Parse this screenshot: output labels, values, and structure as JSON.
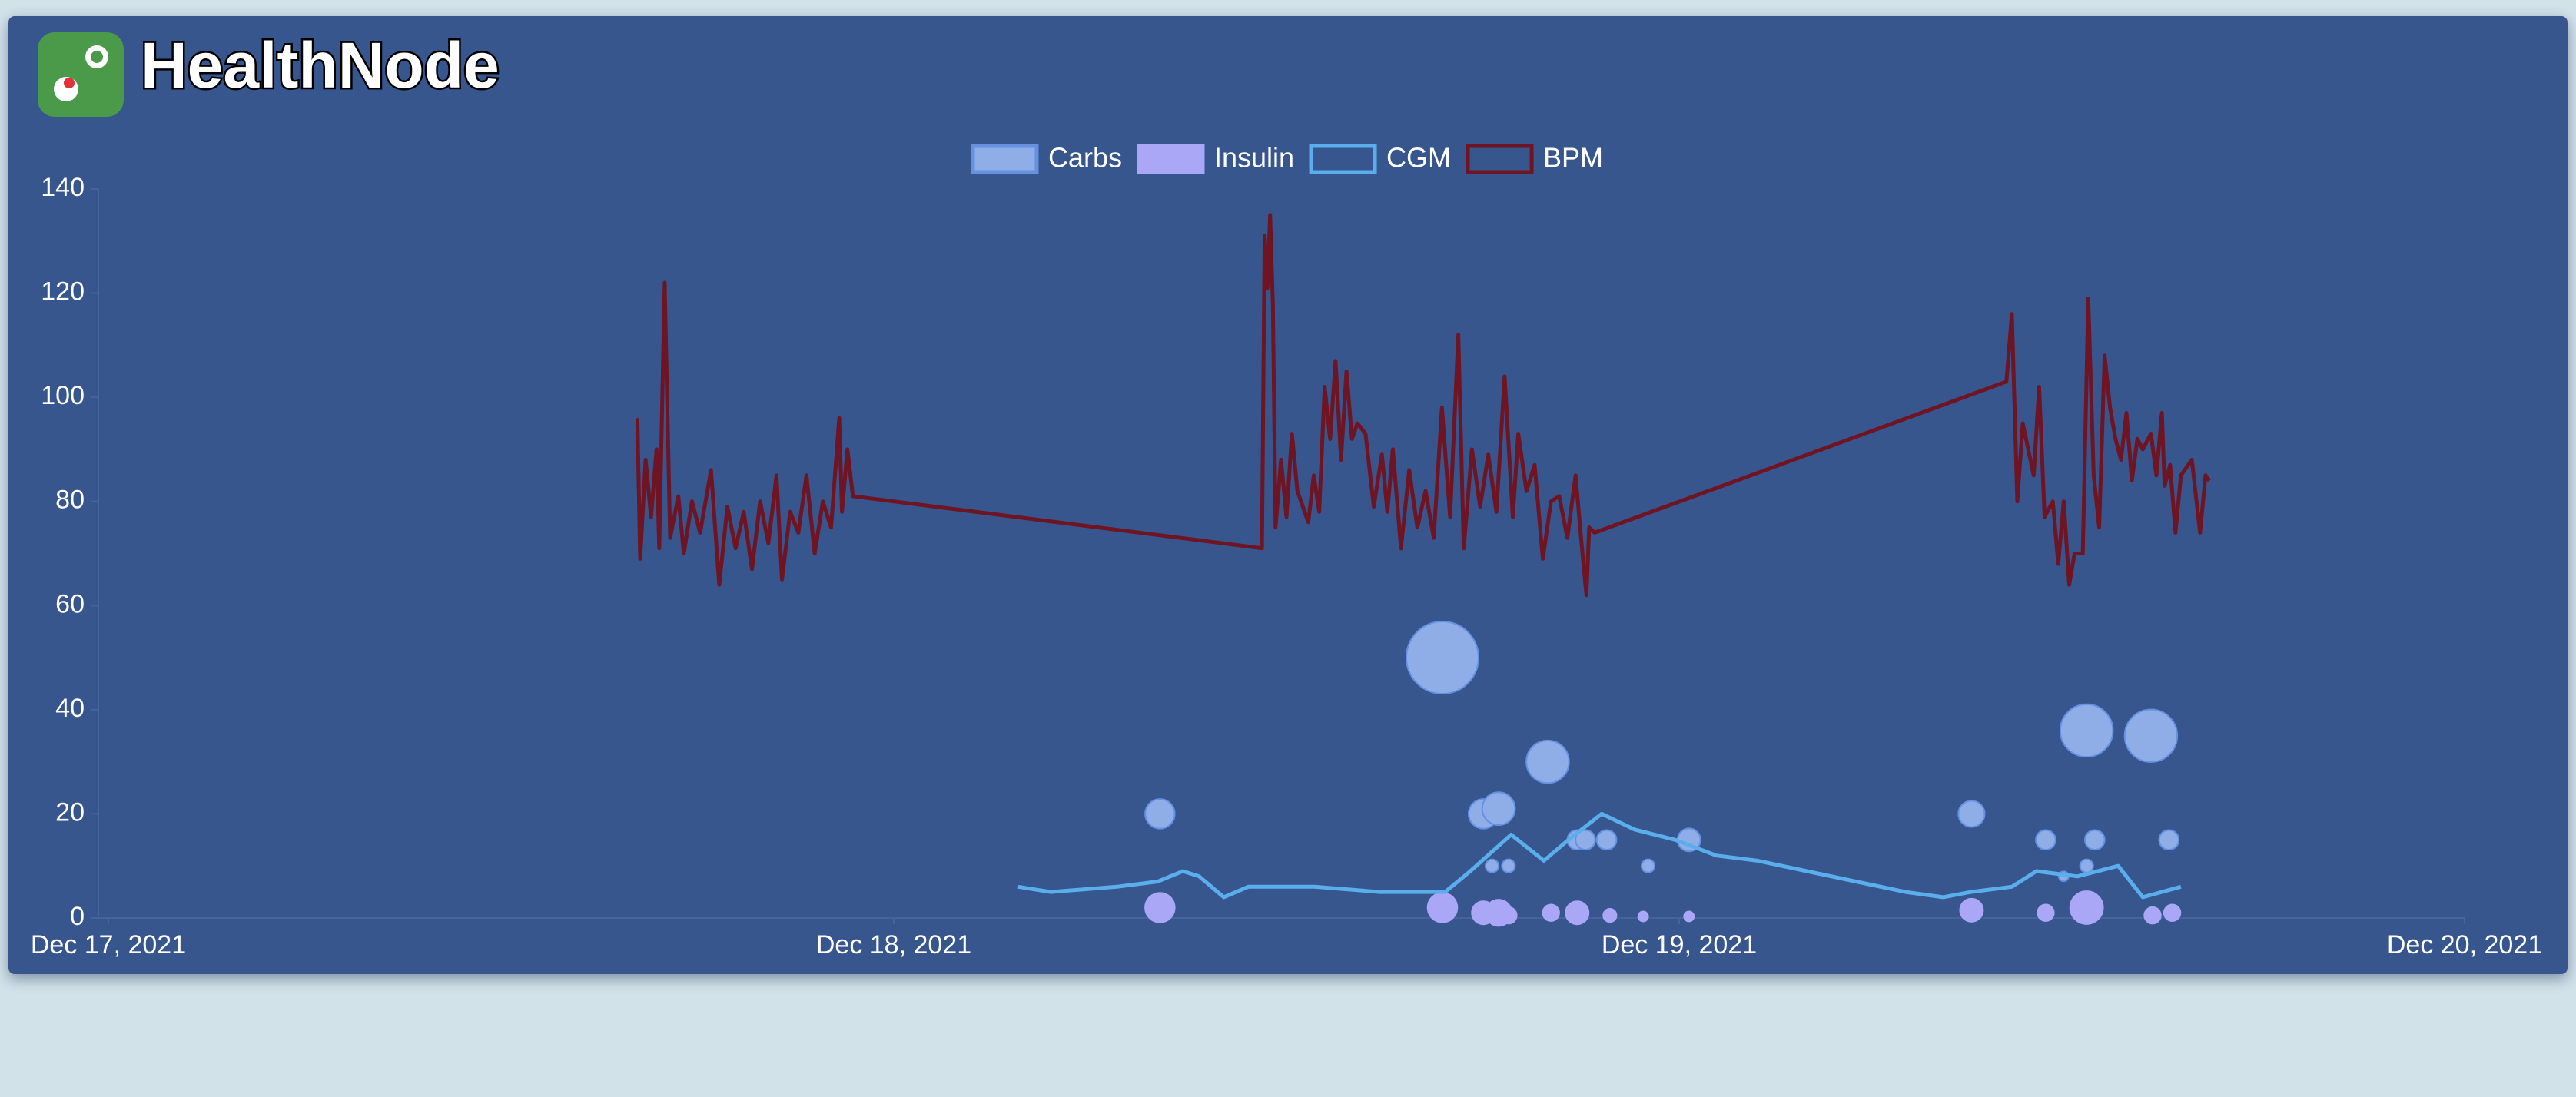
{
  "header": {
    "title": "HealthNode"
  },
  "chart_data": {
    "type": "mixed",
    "xlim": [
      "2021-12-17T00:00",
      "2021-12-20T00:00"
    ],
    "xticks": [
      {
        "value": "2021-12-17T00:00",
        "label": "Dec 17, 2021"
      },
      {
        "value": "2021-12-18T00:00",
        "label": "Dec 18, 2021"
      },
      {
        "value": "2021-12-19T00:00",
        "label": "Dec 19, 2021"
      },
      {
        "value": "2021-12-20T00:00",
        "label": "Dec 20, 2021"
      }
    ],
    "ylim": [
      0,
      140
    ],
    "yticks": [
      0,
      20,
      40,
      60,
      80,
      100,
      120,
      140
    ],
    "legend": "top",
    "series": [
      {
        "name": "Carbs",
        "type": "bubble",
        "color": "#8faee8",
        "border": "#6690e0",
        "x": [
          "2021-12-18T08:08",
          "2021-12-18T16:46",
          "2021-12-18T18:01",
          "2021-12-18T18:29",
          "2021-12-18T18:17",
          "2021-12-18T18:47",
          "2021-12-18T19:59",
          "2021-12-18T20:53",
          "2021-12-18T21:08",
          "2021-12-18T21:47",
          "2021-12-18T23:03",
          "2021-12-19T00:18",
          "2021-12-19T08:56",
          "2021-12-19T11:12",
          "2021-12-19T11:45",
          "2021-12-19T12:27",
          "2021-12-19T12:27",
          "2021-12-19T12:42",
          "2021-12-19T14:25",
          "2021-12-19T14:58"
        ],
        "values": [
          20,
          50,
          20,
          21,
          10,
          10,
          30,
          15,
          15,
          15,
          10,
          15,
          20,
          15,
          8,
          36,
          10,
          15,
          35,
          15
        ],
        "r": [
          9,
          22,
          9,
          10,
          4,
          4,
          13,
          6,
          6,
          6,
          4,
          7,
          8,
          6,
          3,
          16,
          4,
          6,
          16,
          6
        ]
      },
      {
        "name": "Insulin",
        "type": "bubble",
        "color": "#aaa8f6",
        "border": "#aaa8f6",
        "x": [
          "2021-12-18T08:08",
          "2021-12-18T16:46",
          "2021-12-18T18:01",
          "2021-12-18T18:29",
          "2021-12-18T18:47",
          "2021-12-18T20:05",
          "2021-12-18T20:53",
          "2021-12-18T21:53",
          "2021-12-18T22:54",
          "2021-12-19T00:18",
          "2021-12-19T08:56",
          "2021-12-19T11:12",
          "2021-12-19T12:27",
          "2021-12-19T14:28",
          "2021-12-19T15:04"
        ],
        "values": [
          2,
          2,
          1,
          1,
          0.5,
          1,
          1,
          0.5,
          0.3,
          0.3,
          1.5,
          1,
          2,
          0.5,
          1
        ],
        "r": [
          9,
          9,
          7,
          8,
          5,
          5,
          7,
          4,
          3,
          3,
          7,
          5,
          10,
          5,
          5
        ]
      },
      {
        "name": "CGM",
        "type": "line",
        "color": "#5aaeeb",
        "x": [
          "2021-12-18T03:48",
          "2021-12-18T04:48",
          "2021-12-18T06:49",
          "2021-12-18T08:04",
          "2021-12-18T08:50",
          "2021-12-18T09:20",
          "2021-12-18T10:05",
          "2021-12-18T10:50",
          "2021-12-18T12:51",
          "2021-12-18T14:51",
          "2021-12-18T16:51",
          "2021-12-18T17:37",
          "2021-12-18T18:52",
          "2021-12-18T19:52",
          "2021-12-18T20:37",
          "2021-12-18T21:38",
          "2021-12-18T22:38",
          "2021-12-18T23:53",
          "2021-12-19T01:08",
          "2021-12-19T02:24",
          "2021-12-19T03:54",
          "2021-12-19T05:24",
          "2021-12-19T06:55",
          "2021-12-19T08:04",
          "2021-12-19T08:55",
          "2021-12-19T10:10",
          "2021-12-19T10:55",
          "2021-12-19T12:10",
          "2021-12-19T13:25",
          "2021-12-19T14:10",
          "2021-12-19T15:20"
        ],
        "values": [
          6,
          5,
          6,
          7,
          9,
          8,
          4,
          6,
          6,
          5,
          5,
          9,
          16,
          11,
          15,
          20,
          17,
          15,
          12,
          11,
          9,
          7,
          5,
          4,
          5,
          6,
          9,
          8,
          10,
          4,
          6
        ]
      },
      {
        "name": "BPM",
        "type": "line",
        "color": "#6e1423",
        "x": [
          "2021-12-17T16:10",
          "2021-12-17T16:15",
          "2021-12-17T16:25",
          "2021-12-17T16:35",
          "2021-12-17T16:45",
          "2021-12-17T16:50",
          "2021-12-17T17:00",
          "2021-12-17T17:10",
          "2021-12-17T17:25",
          "2021-12-17T17:35",
          "2021-12-17T17:50",
          "2021-12-17T18:05",
          "2021-12-17T18:25",
          "2021-12-17T18:40",
          "2021-12-17T18:55",
          "2021-12-17T19:10",
          "2021-12-17T19:25",
          "2021-12-17T19:40",
          "2021-12-17T19:55",
          "2021-12-17T20:10",
          "2021-12-17T20:25",
          "2021-12-17T20:35",
          "2021-12-17T20:50",
          "2021-12-17T21:05",
          "2021-12-17T21:20",
          "2021-12-17T21:35",
          "2021-12-17T21:50",
          "2021-12-17T22:05",
          "2021-12-17T22:20",
          "2021-12-17T22:25",
          "2021-12-17T22:35",
          "2021-12-17T22:45",
          "2021-12-18T11:15",
          "2021-12-18T11:20",
          "2021-12-18T11:25",
          "2021-12-18T11:30",
          "2021-12-18T11:35",
          "2021-12-18T11:40",
          "2021-12-18T11:50",
          "2021-12-18T12:00",
          "2021-12-18T12:10",
          "2021-12-18T12:20",
          "2021-12-18T12:30",
          "2021-12-18T12:40",
          "2021-12-18T12:50",
          "2021-12-18T13:00",
          "2021-12-18T13:10",
          "2021-12-18T13:20",
          "2021-12-18T13:30",
          "2021-12-18T13:40",
          "2021-12-18T13:50",
          "2021-12-18T14:00",
          "2021-12-18T14:10",
          "2021-12-18T14:25",
          "2021-12-18T14:40",
          "2021-12-18T14:55",
          "2021-12-18T15:05",
          "2021-12-18T15:15",
          "2021-12-18T15:30",
          "2021-12-18T15:45",
          "2021-12-18T16:00",
          "2021-12-18T16:15",
          "2021-12-18T16:30",
          "2021-12-18T16:45",
          "2021-12-18T17:00",
          "2021-12-18T17:15",
          "2021-12-18T17:25",
          "2021-12-18T17:40",
          "2021-12-18T17:55",
          "2021-12-18T18:10",
          "2021-12-18T18:25",
          "2021-12-18T18:40",
          "2021-12-18T18:55",
          "2021-12-18T19:05",
          "2021-12-18T19:20",
          "2021-12-18T19:35",
          "2021-12-18T19:50",
          "2021-12-18T20:05",
          "2021-12-18T20:20",
          "2021-12-18T20:35",
          "2021-12-18T20:50",
          "2021-12-18T21:00",
          "2021-12-18T21:10",
          "2021-12-18T21:15",
          "2021-12-18T21:25",
          "2021-12-19T10:00",
          "2021-12-19T10:10",
          "2021-12-19T10:20",
          "2021-12-19T10:30",
          "2021-12-19T10:40",
          "2021-12-19T10:50",
          "2021-12-19T11:00",
          "2021-12-19T11:10",
          "2021-12-19T11:25",
          "2021-12-19T11:35",
          "2021-12-19T11:45",
          "2021-12-19T11:55",
          "2021-12-19T12:05",
          "2021-12-19T12:20",
          "2021-12-19T12:30",
          "2021-12-19T12:40",
          "2021-12-19T12:50",
          "2021-12-19T13:00",
          "2021-12-19T13:10",
          "2021-12-19T13:20",
          "2021-12-19T13:30",
          "2021-12-19T13:40",
          "2021-12-19T13:50",
          "2021-12-19T14:00",
          "2021-12-19T14:10",
          "2021-12-19T14:25",
          "2021-12-19T14:35",
          "2021-12-19T14:45",
          "2021-12-19T14:50",
          "2021-12-19T15:00",
          "2021-12-19T15:10",
          "2021-12-19T15:20",
          "2021-12-19T15:40",
          "2021-12-19T15:55",
          "2021-12-19T16:05",
          "2021-12-19T16:12"
        ],
        "values": [
          96,
          69,
          88,
          77,
          90,
          71,
          122,
          73,
          81,
          70,
          80,
          74,
          86,
          64,
          79,
          71,
          78,
          67,
          80,
          72,
          85,
          65,
          78,
          74,
          85,
          70,
          80,
          75,
          96,
          78,
          90,
          81,
          71,
          131,
          121,
          135,
          118,
          75,
          88,
          77,
          93,
          82,
          79,
          76,
          85,
          78,
          102,
          92,
          107,
          88,
          105,
          92,
          95,
          93,
          79,
          89,
          78,
          90,
          71,
          86,
          75,
          82,
          73,
          98,
          77,
          112,
          71,
          90,
          79,
          89,
          78,
          104,
          77,
          93,
          82,
          87,
          69,
          80,
          81,
          73,
          85,
          73,
          62,
          75,
          74,
          103,
          116,
          80,
          95,
          90,
          85,
          102,
          77,
          80,
          68,
          80,
          64,
          70,
          70,
          119,
          85,
          75,
          108,
          98,
          92,
          88,
          97,
          84,
          92,
          90,
          93,
          85,
          97,
          83,
          87,
          74,
          85,
          88,
          74,
          85,
          84
        ]
      }
    ]
  }
}
